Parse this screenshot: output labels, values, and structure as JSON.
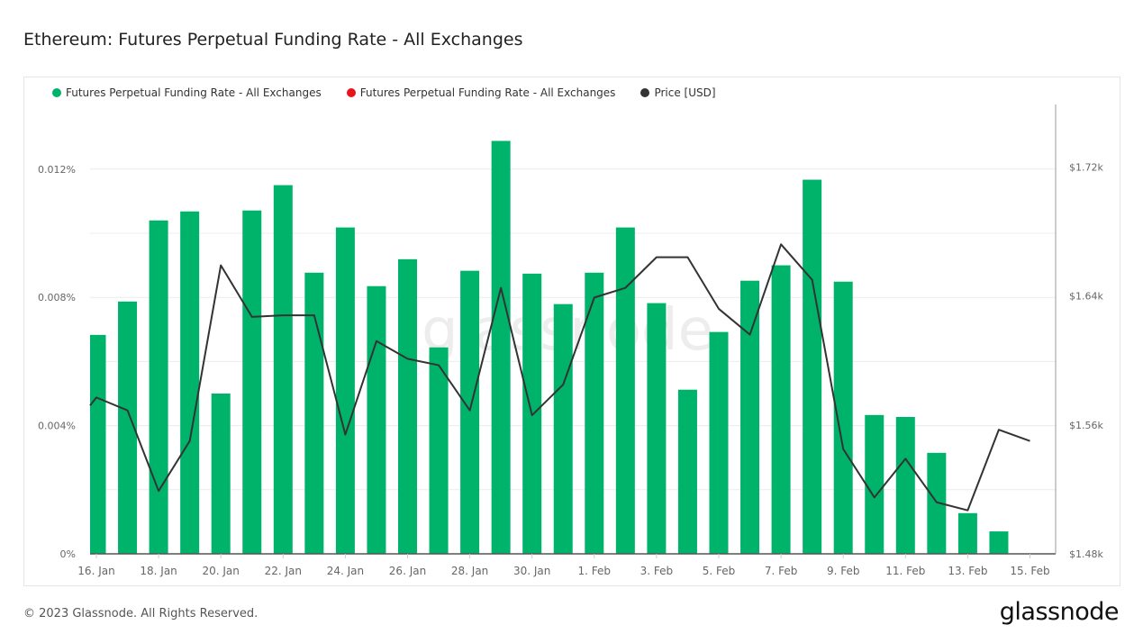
{
  "title": "Ethereum: Futures Perpetual Funding Rate - All Exchanges",
  "footer": "© 2023 Glassnode. All Rights Reserved.",
  "logo": "glassnode",
  "watermark": "glassnode",
  "colors": {
    "positive": "#00b36b",
    "negative": "#e8141c",
    "price": "#333333"
  },
  "chart_data": {
    "type": "bar+line",
    "title": "Ethereum: Futures Perpetual Funding Rate - All Exchanges",
    "legend": [
      {
        "name": "Futures Perpetual Funding Rate - All Exchanges",
        "color": "#00b36b"
      },
      {
        "name": "Futures Perpetual Funding Rate - All Exchanges",
        "color": "#e8141c"
      },
      {
        "name": "Price [USD]",
        "color": "#333333"
      }
    ],
    "legend_position": "top-left",
    "grid": true,
    "x": [
      "16 Jan",
      "17 Jan",
      "18 Jan",
      "19 Jan",
      "20 Jan",
      "21 Jan",
      "22 Jan",
      "23 Jan",
      "24 Jan",
      "25 Jan",
      "26 Jan",
      "27 Jan",
      "28 Jan",
      "29 Jan",
      "30 Jan",
      "31 Jan",
      "1 Feb",
      "2 Feb",
      "3 Feb",
      "4 Feb",
      "5 Feb",
      "6 Feb",
      "7 Feb",
      "8 Feb",
      "9 Feb",
      "10 Feb",
      "11 Feb",
      "12 Feb",
      "13 Feb",
      "14 Feb",
      "15 Feb"
    ],
    "x_tick_labels": [
      "16. Jan",
      "18. Jan",
      "20. Jan",
      "22. Jan",
      "24. Jan",
      "26. Jan",
      "28. Jan",
      "30. Jan",
      "1. Feb",
      "3. Feb",
      "5. Feb",
      "7. Feb",
      "9. Feb",
      "11. Feb",
      "13. Feb",
      "15. Feb"
    ],
    "series": [
      {
        "name": "Futures Perpetual Funding Rate - All Exchanges",
        "axis": "left",
        "type": "bar",
        "unit": "%",
        "values": [
          0.00683,
          0.00787,
          0.0104,
          0.01068,
          0.005,
          0.01071,
          0.0115,
          0.00877,
          0.01018,
          0.00835,
          0.00919,
          0.00644,
          0.00883,
          0.01288,
          0.00874,
          0.00779,
          0.00877,
          0.01018,
          0.00782,
          0.00512,
          0.00692,
          0.00852,
          0.009,
          0.01167,
          0.00849,
          0.00433,
          0.00427,
          0.00315,
          0.00127,
          0.0007,
          null
        ]
      },
      {
        "name": "Price [USD]",
        "axis": "right",
        "type": "line",
        "unit": "USD",
        "values": [
          1577,
          1569,
          1519,
          1550,
          1659,
          1627,
          1628,
          1628,
          1554,
          1612,
          1601,
          1597,
          1569,
          1645,
          1566,
          1585,
          1639,
          1645,
          1664,
          1664,
          1632,
          1616,
          1672,
          1650,
          1545,
          1515,
          1539,
          1512,
          1507,
          1557,
          1550
        ]
      }
    ],
    "y_left": {
      "ylim": [
        0,
        0.0135
      ],
      "ticks": [
        0,
        0.004,
        0.008,
        0.012
      ],
      "tick_labels": [
        "0%",
        "0.004%",
        "0.008%",
        "0.012%"
      ]
    },
    "y_right": {
      "ylim": [
        1480,
        1755
      ],
      "ticks": [
        1480,
        1560,
        1640,
        1720
      ],
      "tick_labels": [
        "$1.48k",
        "$1.56k",
        "$1.64k",
        "$1.72k"
      ]
    }
  }
}
